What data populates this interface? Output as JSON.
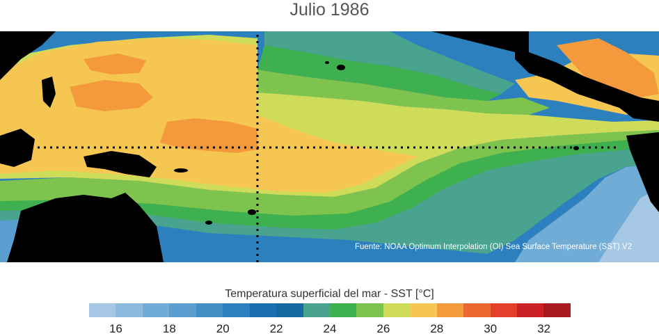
{
  "title": "Julio 1986",
  "source": "Fuente: NOAA Optimum Interpolation (OI) Sea Surface Temperature (SST) V2",
  "colorbar": {
    "title": "Temperatura superficial del mar - SST  [°C]",
    "min": 15,
    "max": 33,
    "colors": [
      "#a6c8e4",
      "#8bbadd",
      "#71acd6",
      "#5a9fd0",
      "#428fc6",
      "#2c80bd",
      "#1a6fb0",
      "#146aa0",
      "#4aa38e",
      "#3fb050",
      "#7ec34d",
      "#cfdc5a",
      "#f6c653",
      "#f39a3c",
      "#eb6731",
      "#e2402a",
      "#cc2027",
      "#a81a1e"
    ],
    "ticks": [
      "16",
      "18",
      "20",
      "22",
      "24",
      "26",
      "28",
      "30",
      "32"
    ],
    "tick_values": [
      16,
      18,
      20,
      22,
      24,
      26,
      28,
      30,
      32
    ]
  },
  "map": {
    "lines": [
      "equator-dotted",
      "dateline-dotted"
    ],
    "colors": {
      "land": "#000000"
    }
  }
}
